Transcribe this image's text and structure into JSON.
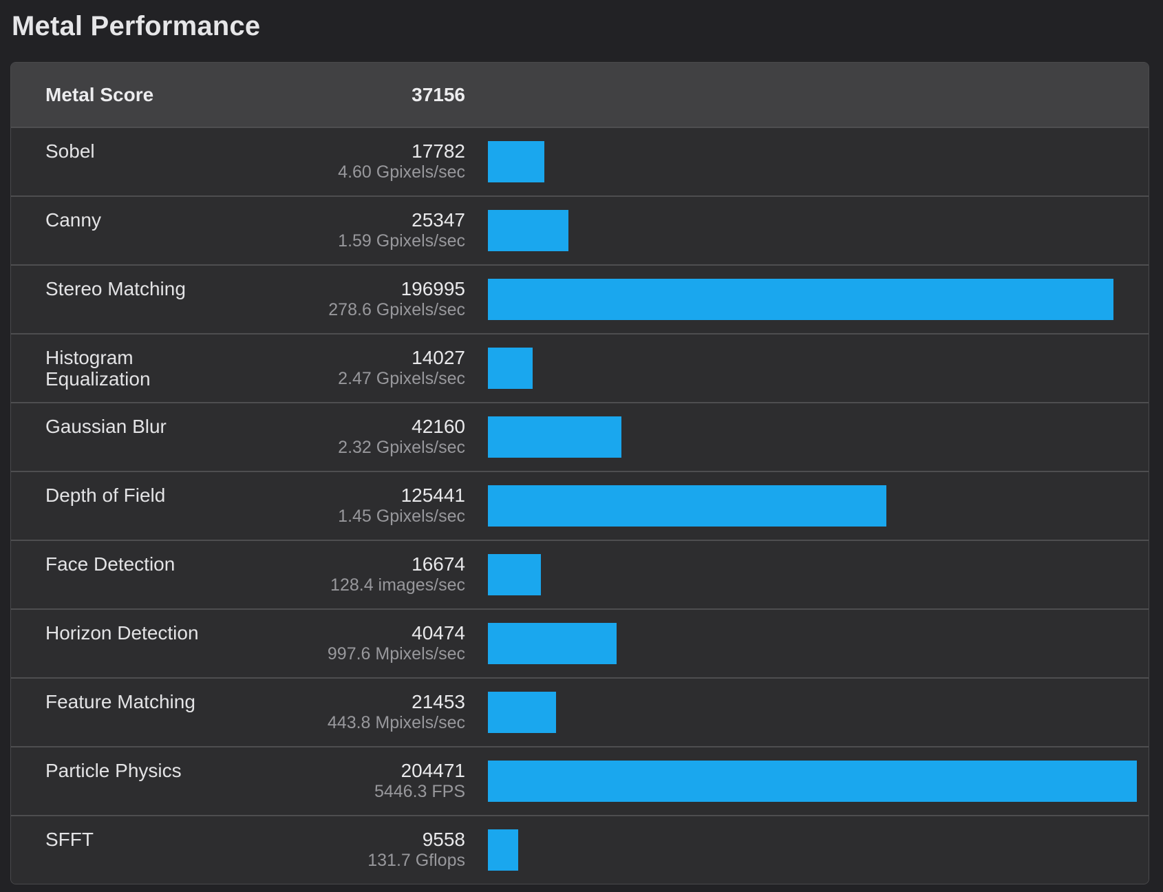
{
  "page": {
    "title": "Metal Performance"
  },
  "colors": {
    "accent_blue": "#1aa7ee",
    "page_background": "#222225",
    "row_background": "#2d2d2f",
    "header_background": "#414143",
    "separator": "#4e4e50",
    "label_text": "#e3e3e5",
    "rate_text": "#98989c"
  },
  "table": {
    "header": {
      "label": "Metal Score",
      "score": "37156"
    },
    "rows": [
      {
        "label": "Sobel",
        "score": "17782",
        "rate": "4.60 Gpixels/sec"
      },
      {
        "label": "Canny",
        "score": "25347",
        "rate": "1.59 Gpixels/sec"
      },
      {
        "label": "Stereo Matching",
        "score": "196995",
        "rate": "278.6 Gpixels/sec"
      },
      {
        "label": "Histogram Equalization",
        "score": "14027",
        "rate": "2.47 Gpixels/sec"
      },
      {
        "label": "Gaussian Blur",
        "score": "42160",
        "rate": "2.32 Gpixels/sec"
      },
      {
        "label": "Depth of Field",
        "score": "125441",
        "rate": "1.45 Gpixels/sec"
      },
      {
        "label": "Face Detection",
        "score": "16674",
        "rate": "128.4 images/sec"
      },
      {
        "label": "Horizon Detection",
        "score": "40474",
        "rate": "997.6 Mpixels/sec"
      },
      {
        "label": "Feature Matching",
        "score": "21453",
        "rate": "443.8 Mpixels/sec"
      },
      {
        "label": "Particle Physics",
        "score": "204471",
        "rate": "5446.3 FPS"
      },
      {
        "label": "SFFT",
        "score": "9558",
        "rate": "131.7 Gflops"
      }
    ]
  },
  "chart_data": {
    "type": "bar",
    "orientation": "horizontal",
    "title": "Metal Performance",
    "metal_score": 37156,
    "categories": [
      "Sobel",
      "Canny",
      "Stereo Matching",
      "Histogram Equalization",
      "Gaussian Blur",
      "Depth of Field",
      "Face Detection",
      "Horizon Detection",
      "Feature Matching",
      "Particle Physics",
      "SFFT"
    ],
    "values": [
      17782,
      25347,
      196995,
      14027,
      42160,
      125441,
      16674,
      40474,
      21453,
      204471,
      9558
    ],
    "rate_labels": [
      "4.60 Gpixels/sec",
      "1.59 Gpixels/sec",
      "278.6 Gpixels/sec",
      "2.47 Gpixels/sec",
      "2.32 Gpixels/sec",
      "1.45 Gpixels/sec",
      "128.4 images/sec",
      "997.6 Mpixels/sec",
      "443.8 Mpixels/sec",
      "5446.3 FPS",
      "131.7 Gflops"
    ],
    "xlim": [
      0,
      204471
    ],
    "bar_color": "#1aa7ee",
    "grid": false,
    "legend": "none"
  }
}
